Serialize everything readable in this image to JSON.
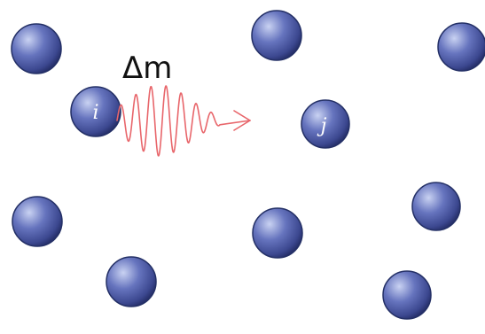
{
  "diagram": {
    "background_color": "#ffffff",
    "particle_color": "#4a5aa8",
    "particle_highlight_color": "#c9d2f2",
    "particle_shadow_color": "#27306b",
    "wave_color": "#e8666b",
    "particle_count": 10,
    "labels": {
      "particle_i": "i",
      "particle_j": "j",
      "mass_transfer": "Δm"
    }
  }
}
